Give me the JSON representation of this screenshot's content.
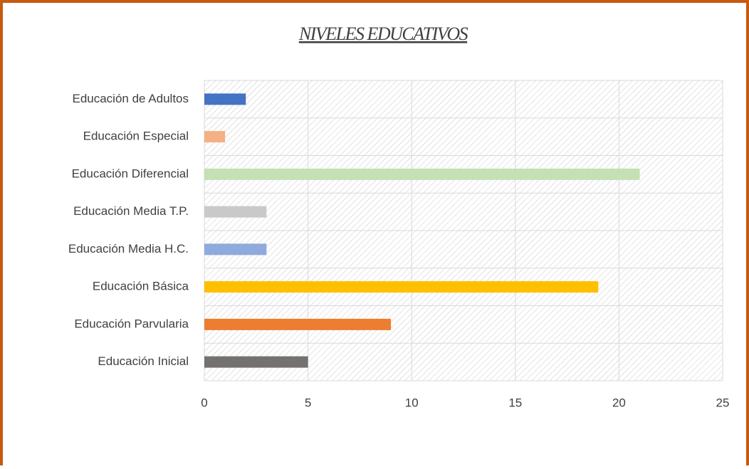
{
  "chart_data": {
    "type": "barh",
    "title": "NIVELES EDUCATIVOS",
    "categories": [
      "Educación Inicial",
      "Educación Parvularia",
      "Educación Básica",
      "Educación Media H.C.",
      "Educación Media T.P.",
      "Educación Diferencial",
      "Educación Especial",
      "Educación de Adultos"
    ],
    "values": [
      5,
      9,
      19,
      3,
      3,
      21,
      1,
      2
    ],
    "colors": [
      "#767171",
      "#ed7d31",
      "#ffc000",
      "#8faadc",
      "#c9c9c9",
      "#c5e0b4",
      "#f4b183",
      "#4472c4"
    ],
    "xlim": [
      0,
      25
    ],
    "xticks": [
      0,
      5,
      10,
      15,
      20,
      25
    ],
    "grid": true
  }
}
